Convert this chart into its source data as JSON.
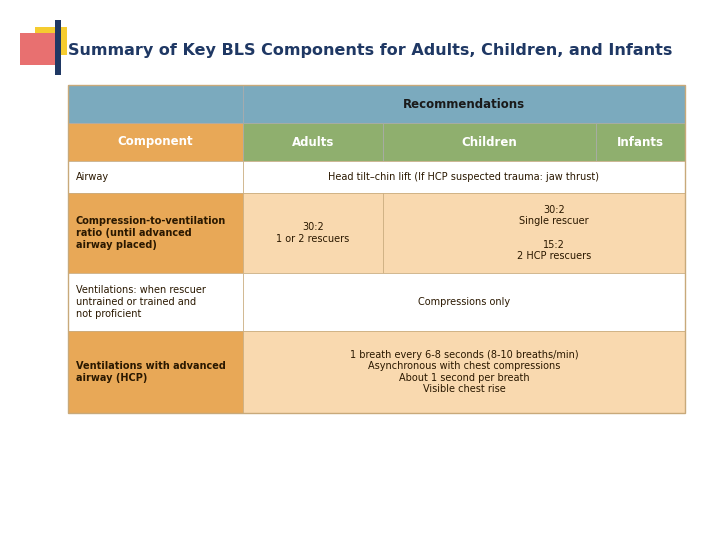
{
  "title": "Summary of Key BLS Components for Adults, Children, and Infants",
  "title_color": "#1F3864",
  "title_fontsize": 11.5,
  "fig_bg": "#FFFFFF",
  "header1_bg": "#7BAABE",
  "header1_text": "Recommendations",
  "header1_text_color": "#1a1a1a",
  "header2_bg": "#8FAF6E",
  "header2_cols": [
    "Component",
    "Adults",
    "Children",
    "Infants"
  ],
  "header2_text_color": "#FFFFFF",
  "col1_header_bg": "#E8A857",
  "col1_shaded_bg": "#E8A857",
  "row_bg_shaded": "#F9D9AF",
  "row_bg_white": "#FFFFFF",
  "border_color": "#C8A97A",
  "deco_red": "#E87070",
  "deco_yellow": "#F5CC30",
  "deco_blue": "#1F3864",
  "rows": [
    {
      "component": "Airway",
      "component_bold": false,
      "adults": "",
      "content": "Head tilt–chin lift (If HCP suspected trauma: jaw thrust)",
      "content_span": "adults_children_infants",
      "shaded": false
    },
    {
      "component": "Compression-to-ventilation\nratio (until advanced\nairway placed)",
      "component_bold": true,
      "adults": "30:2\n1 or 2 rescuers",
      "content": "30:2\nSingle rescuer\n\n15:2\n2 HCP rescuers",
      "content_span": "children_infants",
      "shaded": true
    },
    {
      "component": "Ventilations: when rescuer\nuntrained or trained and\nnot proficient",
      "component_bold": false,
      "adults": "",
      "content": "Compressions only",
      "content_span": "adults_children_infants",
      "shaded": false
    },
    {
      "component": "Ventilations with advanced\nairway (HCP)",
      "component_bold": true,
      "adults": "",
      "content": "1 breath every 6-8 seconds (8-10 breaths/min)\nAsynchronous with chest compressions\nAbout 1 second per breath\nVisible chest rise",
      "content_span": "adults_children_infants",
      "shaded": true
    }
  ]
}
